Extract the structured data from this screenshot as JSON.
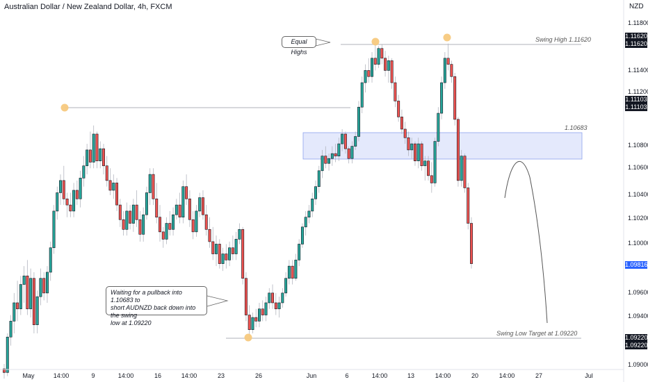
{
  "chart_title": "Australian Dollar / New Zealand Dollar, 4h, FXCM",
  "price_unit": "NZD",
  "chart_data": {
    "type": "candlestick",
    "title": "Australian Dollar / New Zealand Dollar, 4h, FXCM",
    "ylim": [
      1.089,
      1.119
    ],
    "y_ticks": [
      "1.11800",
      "1.11620",
      "1.11620",
      "1.11400",
      "1.11200",
      "1.11103",
      "1.11103",
      "1.10800",
      "1.10600",
      "1.10400",
      "1.10200",
      "1.10000",
      "1.09816",
      "1.09600",
      "1.09400",
      "1.09220",
      "1.09220",
      "1.09000"
    ],
    "x_ticks": [
      "May",
      "14:00",
      "9",
      "14:00",
      "16",
      "14:00",
      "23",
      "26",
      "Jun",
      "6",
      "14:00",
      "13",
      "14:00",
      "20",
      "14:00",
      "27",
      "Jul"
    ],
    "current_price": 1.09816,
    "levels": [
      {
        "name": "Swing High",
        "value": 1.1162,
        "label": "Swing High 1.11620"
      },
      {
        "name": "Prior high",
        "value": 1.11103
      },
      {
        "name": "Resistance zone",
        "from": 1.1068,
        "to": 1.1089,
        "label": "1.10683"
      },
      {
        "name": "Swing Low Target",
        "value": 1.0922,
        "label": "Swing Low Target at 1.09220"
      }
    ],
    "candles": [
      {
        "o": 1.0896,
        "h": 1.09,
        "l": 1.0888,
        "c": 1.0893
      },
      {
        "o": 1.0893,
        "h": 1.0925,
        "l": 1.089,
        "c": 1.0922
      },
      {
        "o": 1.0922,
        "h": 1.094,
        "l": 1.0915,
        "c": 1.0935
      },
      {
        "o": 1.0935,
        "h": 1.0958,
        "l": 1.0925,
        "c": 1.095
      },
      {
        "o": 1.095,
        "h": 1.0968,
        "l": 1.0935,
        "c": 1.0945
      },
      {
        "o": 1.0945,
        "h": 1.0972,
        "l": 1.094,
        "c": 1.0965
      },
      {
        "o": 1.0965,
        "h": 1.098,
        "l": 1.095,
        "c": 1.0972
      },
      {
        "o": 1.0972,
        "h": 1.0985,
        "l": 1.094,
        "c": 1.0945
      },
      {
        "o": 1.0945,
        "h": 1.0978,
        "l": 1.0938,
        "c": 1.097
      },
      {
        "o": 1.097,
        "h": 1.0975,
        "l": 1.0925,
        "c": 1.0932
      },
      {
        "o": 1.0932,
        "h": 1.096,
        "l": 1.0925,
        "c": 1.0955
      },
      {
        "o": 1.0955,
        "h": 1.0978,
        "l": 1.0948,
        "c": 1.097
      },
      {
        "o": 1.097,
        "h": 1.0975,
        "l": 1.0952,
        "c": 1.0958
      },
      {
        "o": 1.0958,
        "h": 1.098,
        "l": 1.095,
        "c": 1.0975
      },
      {
        "o": 1.0975,
        "h": 1.1,
        "l": 1.0968,
        "c": 1.0995
      },
      {
        "o": 1.0995,
        "h": 1.103,
        "l": 1.099,
        "c": 1.1025
      },
      {
        "o": 1.1025,
        "h": 1.1045,
        "l": 1.1018,
        "c": 1.104
      },
      {
        "o": 1.104,
        "h": 1.1055,
        "l": 1.103,
        "c": 1.105
      },
      {
        "o": 1.105,
        "h": 1.1062,
        "l": 1.103,
        "c": 1.1035
      },
      {
        "o": 1.1035,
        "h": 1.104,
        "l": 1.102,
        "c": 1.103
      },
      {
        "o": 1.103,
        "h": 1.104,
        "l": 1.102,
        "c": 1.1025
      },
      {
        "o": 1.1025,
        "h": 1.1048,
        "l": 1.102,
        "c": 1.1042
      },
      {
        "o": 1.1042,
        "h": 1.105,
        "l": 1.103,
        "c": 1.1035
      },
      {
        "o": 1.1035,
        "h": 1.1058,
        "l": 1.1028,
        "c": 1.1052
      },
      {
        "o": 1.1052,
        "h": 1.107,
        "l": 1.1045,
        "c": 1.1062
      },
      {
        "o": 1.1062,
        "h": 1.108,
        "l": 1.1055,
        "c": 1.1075
      },
      {
        "o": 1.1075,
        "h": 1.109,
        "l": 1.106,
        "c": 1.1065
      },
      {
        "o": 1.1065,
        "h": 1.1095,
        "l": 1.106,
        "c": 1.1088
      },
      {
        "o": 1.1088,
        "h": 1.109,
        "l": 1.106,
        "c": 1.1066
      },
      {
        "o": 1.1066,
        "h": 1.1082,
        "l": 1.106,
        "c": 1.1076
      },
      {
        "o": 1.1076,
        "h": 1.108,
        "l": 1.1055,
        "c": 1.1062
      },
      {
        "o": 1.1062,
        "h": 1.107,
        "l": 1.1045,
        "c": 1.105
      },
      {
        "o": 1.105,
        "h": 1.106,
        "l": 1.1038,
        "c": 1.1042
      },
      {
        "o": 1.1042,
        "h": 1.1055,
        "l": 1.1035,
        "c": 1.1048
      },
      {
        "o": 1.1048,
        "h": 1.1052,
        "l": 1.1025,
        "c": 1.103
      },
      {
        "o": 1.103,
        "h": 1.1035,
        "l": 1.1012,
        "c": 1.1018
      },
      {
        "o": 1.1018,
        "h": 1.1025,
        "l": 1.1005,
        "c": 1.101
      },
      {
        "o": 1.101,
        "h": 1.1032,
        "l": 1.1005,
        "c": 1.1025
      },
      {
        "o": 1.1025,
        "h": 1.103,
        "l": 1.101,
        "c": 1.1015
      },
      {
        "o": 1.1015,
        "h": 1.1035,
        "l": 1.1008,
        "c": 1.103
      },
      {
        "o": 1.103,
        "h": 1.1042,
        "l": 1.1012,
        "c": 1.1018
      },
      {
        "o": 1.1018,
        "h": 1.1025,
        "l": 1.1,
        "c": 1.1006
      },
      {
        "o": 1.1006,
        "h": 1.1028,
        "l": 1.1,
        "c": 1.1022
      },
      {
        "o": 1.1022,
        "h": 1.1045,
        "l": 1.1018,
        "c": 1.104
      },
      {
        "o": 1.104,
        "h": 1.106,
        "l": 1.103,
        "c": 1.1055
      },
      {
        "o": 1.1055,
        "h": 1.106,
        "l": 1.103,
        "c": 1.1035
      },
      {
        "o": 1.1035,
        "h": 1.1048,
        "l": 1.1015,
        "c": 1.102
      },
      {
        "o": 1.102,
        "h": 1.103,
        "l": 1.1,
        "c": 1.1008
      },
      {
        "o": 1.1008,
        "h": 1.1012,
        "l": 1.0995,
        "c": 1.1002
      },
      {
        "o": 1.1002,
        "h": 1.102,
        "l": 1.0998,
        "c": 1.1015
      },
      {
        "o": 1.1015,
        "h": 1.1025,
        "l": 1.1005,
        "c": 1.101
      },
      {
        "o": 1.101,
        "h": 1.1028,
        "l": 1.1005,
        "c": 1.1022
      },
      {
        "o": 1.1022,
        "h": 1.1035,
        "l": 1.1018,
        "c": 1.103
      },
      {
        "o": 1.103,
        "h": 1.104,
        "l": 1.1015,
        "c": 1.102
      },
      {
        "o": 1.102,
        "h": 1.105,
        "l": 1.1015,
        "c": 1.1045
      },
      {
        "o": 1.1045,
        "h": 1.1055,
        "l": 1.103,
        "c": 1.1035
      },
      {
        "o": 1.1035,
        "h": 1.1042,
        "l": 1.1012,
        "c": 1.1018
      },
      {
        "o": 1.1018,
        "h": 1.1025,
        "l": 1.1002,
        "c": 1.1008
      },
      {
        "o": 1.1008,
        "h": 1.103,
        "l": 1.1004,
        "c": 1.1025
      },
      {
        "o": 1.1025,
        "h": 1.104,
        "l": 1.102,
        "c": 1.1036
      },
      {
        "o": 1.1036,
        "h": 1.1042,
        "l": 1.1018,
        "c": 1.1022
      },
      {
        "o": 1.1022,
        "h": 1.103,
        "l": 1.1005,
        "c": 1.101
      },
      {
        "o": 1.101,
        "h": 1.102,
        "l": 1.0995,
        "c": 1.1
      },
      {
        "o": 1.1,
        "h": 1.1012,
        "l": 1.0985,
        "c": 1.099
      },
      {
        "o": 1.099,
        "h": 1.1005,
        "l": 1.098,
        "c": 1.0998
      },
      {
        "o": 1.0998,
        "h": 1.1002,
        "l": 1.0978,
        "c": 1.0982
      },
      {
        "o": 1.0982,
        "h": 1.0995,
        "l": 1.0976,
        "c": 1.099
      },
      {
        "o": 1.099,
        "h": 1.0998,
        "l": 1.0978,
        "c": 1.0985
      },
      {
        "o": 1.0985,
        "h": 1.1,
        "l": 1.098,
        "c": 1.0995
      },
      {
        "o": 1.0995,
        "h": 1.1005,
        "l": 1.0985,
        "c": 1.099
      },
      {
        "o": 1.099,
        "h": 1.1008,
        "l": 1.0985,
        "c": 1.1002
      },
      {
        "o": 1.1002,
        "h": 1.1015,
        "l": 1.0998,
        "c": 1.101
      },
      {
        "o": 1.101,
        "h": 1.1012,
        "l": 1.0965,
        "c": 1.097
      },
      {
        "o": 1.097,
        "h": 1.0975,
        "l": 1.0935,
        "c": 1.094
      },
      {
        "o": 1.094,
        "h": 1.0948,
        "l": 1.0922,
        "c": 1.0928
      },
      {
        "o": 1.0928,
        "h": 1.0942,
        "l": 1.0925,
        "c": 1.0938
      },
      {
        "o": 1.0938,
        "h": 1.0945,
        "l": 1.093,
        "c": 1.0935
      },
      {
        "o": 1.0935,
        "h": 1.095,
        "l": 1.093,
        "c": 1.0945
      },
      {
        "o": 1.0945,
        "h": 1.0952,
        "l": 1.0935,
        "c": 1.094
      },
      {
        "o": 1.094,
        "h": 1.0955,
        "l": 1.0935,
        "c": 1.095
      },
      {
        "o": 1.095,
        "h": 1.0962,
        "l": 1.0945,
        "c": 1.0958
      },
      {
        "o": 1.0958,
        "h": 1.0965,
        "l": 1.0945,
        "c": 1.095
      },
      {
        "o": 1.095,
        "h": 1.0958,
        "l": 1.094,
        "c": 1.0945
      },
      {
        "o": 1.0945,
        "h": 1.0955,
        "l": 1.0938,
        "c": 1.095
      },
      {
        "o": 1.095,
        "h": 1.0962,
        "l": 1.0946,
        "c": 1.0958
      },
      {
        "o": 1.0958,
        "h": 1.0975,
        "l": 1.0955,
        "c": 1.097
      },
      {
        "o": 1.097,
        "h": 1.0985,
        "l": 1.0965,
        "c": 1.098
      },
      {
        "o": 1.098,
        "h": 1.0985,
        "l": 1.0965,
        "c": 1.097
      },
      {
        "o": 1.097,
        "h": 1.099,
        "l": 1.0968,
        "c": 1.0985
      },
      {
        "o": 1.0985,
        "h": 1.1002,
        "l": 1.098,
        "c": 1.0998
      },
      {
        "o": 1.0998,
        "h": 1.1015,
        "l": 1.0995,
        "c": 1.1012
      },
      {
        "o": 1.1012,
        "h": 1.1025,
        "l": 1.1005,
        "c": 1.102
      },
      {
        "o": 1.102,
        "h": 1.103,
        "l": 1.1015,
        "c": 1.1025
      },
      {
        "o": 1.1025,
        "h": 1.104,
        "l": 1.102,
        "c": 1.1035
      },
      {
        "o": 1.1035,
        "h": 1.105,
        "l": 1.103,
        "c": 1.1045
      },
      {
        "o": 1.1045,
        "h": 1.1062,
        "l": 1.104,
        "c": 1.1058
      },
      {
        "o": 1.1058,
        "h": 1.1075,
        "l": 1.1052,
        "c": 1.107
      },
      {
        "o": 1.107,
        "h": 1.1078,
        "l": 1.106,
        "c": 1.1064
      },
      {
        "o": 1.1064,
        "h": 1.1072,
        "l": 1.1058,
        "c": 1.1068
      },
      {
        "o": 1.1068,
        "h": 1.1078,
        "l": 1.1062,
        "c": 1.1072
      },
      {
        "o": 1.1072,
        "h": 1.108,
        "l": 1.1065,
        "c": 1.107
      },
      {
        "o": 1.107,
        "h": 1.1085,
        "l": 1.1066,
        "c": 1.108
      },
      {
        "o": 1.108,
        "h": 1.1092,
        "l": 1.1074,
        "c": 1.1088
      },
      {
        "o": 1.1088,
        "h": 1.109,
        "l": 1.1072,
        "c": 1.1076
      },
      {
        "o": 1.1076,
        "h": 1.1078,
        "l": 1.1064,
        "c": 1.1068
      },
      {
        "o": 1.1068,
        "h": 1.1082,
        "l": 1.1064,
        "c": 1.1078
      },
      {
        "o": 1.1078,
        "h": 1.109,
        "l": 1.1075,
        "c": 1.1086
      },
      {
        "o": 1.1086,
        "h": 1.1115,
        "l": 1.1082,
        "c": 1.111
      },
      {
        "o": 1.111,
        "h": 1.1135,
        "l": 1.1105,
        "c": 1.113
      },
      {
        "o": 1.113,
        "h": 1.1145,
        "l": 1.1122,
        "c": 1.114
      },
      {
        "o": 1.114,
        "h": 1.115,
        "l": 1.113,
        "c": 1.1135
      },
      {
        "o": 1.1135,
        "h": 1.1155,
        "l": 1.113,
        "c": 1.115
      },
      {
        "o": 1.115,
        "h": 1.1162,
        "l": 1.114,
        "c": 1.1145
      },
      {
        "o": 1.1145,
        "h": 1.116,
        "l": 1.1142,
        "c": 1.1158
      },
      {
        "o": 1.1158,
        "h": 1.1161,
        "l": 1.1145,
        "c": 1.115
      },
      {
        "o": 1.115,
        "h": 1.1156,
        "l": 1.1135,
        "c": 1.114
      },
      {
        "o": 1.114,
        "h": 1.1152,
        "l": 1.113,
        "c": 1.1148
      },
      {
        "o": 1.1148,
        "h": 1.115,
        "l": 1.1125,
        "c": 1.113
      },
      {
        "o": 1.113,
        "h": 1.1135,
        "l": 1.111,
        "c": 1.1115
      },
      {
        "o": 1.1115,
        "h": 1.112,
        "l": 1.1098,
        "c": 1.1102
      },
      {
        "o": 1.1102,
        "h": 1.1108,
        "l": 1.1088,
        "c": 1.1092
      },
      {
        "o": 1.1092,
        "h": 1.1098,
        "l": 1.108,
        "c": 1.1085
      },
      {
        "o": 1.1085,
        "h": 1.109,
        "l": 1.107,
        "c": 1.1075
      },
      {
        "o": 1.1075,
        "h": 1.1085,
        "l": 1.1068,
        "c": 1.108
      },
      {
        "o": 1.108,
        "h": 1.1082,
        "l": 1.1062,
        "c": 1.1066
      },
      {
        "o": 1.1066,
        "h": 1.1085,
        "l": 1.106,
        "c": 1.108
      },
      {
        "o": 1.108,
        "h": 1.1082,
        "l": 1.1058,
        "c": 1.1062
      },
      {
        "o": 1.1062,
        "h": 1.107,
        "l": 1.105,
        "c": 1.1066
      },
      {
        "o": 1.1066,
        "h": 1.107,
        "l": 1.105,
        "c": 1.1054
      },
      {
        "o": 1.1054,
        "h": 1.1065,
        "l": 1.104,
        "c": 1.1048
      },
      {
        "o": 1.1048,
        "h": 1.1085,
        "l": 1.1045,
        "c": 1.1082
      },
      {
        "o": 1.1082,
        "h": 1.111,
        "l": 1.1078,
        "c": 1.1105
      },
      {
        "o": 1.1105,
        "h": 1.1135,
        "l": 1.11,
        "c": 1.113
      },
      {
        "o": 1.113,
        "h": 1.1155,
        "l": 1.1125,
        "c": 1.115
      },
      {
        "o": 1.115,
        "h": 1.1162,
        "l": 1.114,
        "c": 1.1145
      },
      {
        "o": 1.1145,
        "h": 1.1148,
        "l": 1.113,
        "c": 1.1135
      },
      {
        "o": 1.1135,
        "h": 1.1138,
        "l": 1.1095,
        "c": 1.11
      },
      {
        "o": 1.11,
        "h": 1.1102,
        "l": 1.1045,
        "c": 1.105
      },
      {
        "o": 1.105,
        "h": 1.1075,
        "l": 1.1045,
        "c": 1.107
      },
      {
        "o": 1.107,
        "h": 1.1072,
        "l": 1.104,
        "c": 1.1044
      },
      {
        "o": 1.1044,
        "h": 1.1048,
        "l": 1.101,
        "c": 1.1015
      },
      {
        "o": 1.1015,
        "h": 1.102,
        "l": 1.0978,
        "c": 1.0982
      }
    ]
  },
  "annotations": {
    "equal_highs": "Equal Highs",
    "swing_high": "Swing High 1.11620",
    "zone_level": "1.10683",
    "swing_low_target": "Swing Low Target at 1.09220",
    "note_line1": "Waiting for a pullback into 1.10683 to",
    "note_line2": "short AUDNZD back down into the swing",
    "note_line3": "low at 1.09220"
  },
  "colors": {
    "up": "#26a69a",
    "down": "#ef5350",
    "zone": "#dde4fb",
    "marker": "#f7c97e",
    "current_price_tag": "#2962ff"
  }
}
